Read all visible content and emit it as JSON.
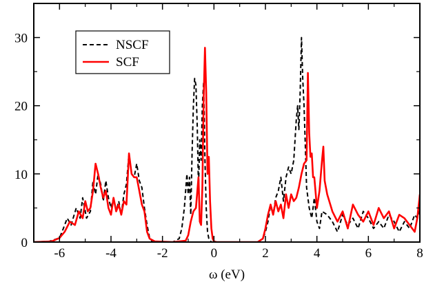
{
  "chart_data": {
    "type": "line",
    "title": "",
    "xlabel": "ω (eV)",
    "ylabel": "",
    "xlim": [
      -7,
      8
    ],
    "ylim": [
      0,
      35
    ],
    "x_ticks": [
      -6,
      -4,
      -2,
      0,
      2,
      4,
      6,
      8
    ],
    "y_ticks": [
      0,
      10,
      20,
      30
    ],
    "grid": false,
    "legend_position": "top-left",
    "series": [
      {
        "name": "NSCF",
        "color": "#000000",
        "style": "dashed",
        "x": [
          -7.0,
          -6.4,
          -6.0,
          -5.85,
          -5.7,
          -5.55,
          -5.35,
          -5.2,
          -5.1,
          -4.95,
          -4.8,
          -4.7,
          -4.6,
          -4.5,
          -4.4,
          -4.3,
          -4.2,
          -4.1,
          -4.0,
          -3.9,
          -3.8,
          -3.7,
          -3.6,
          -3.5,
          -3.4,
          -3.3,
          -3.2,
          -3.1,
          -3.0,
          -2.9,
          -2.8,
          -2.7,
          -2.6,
          -2.5,
          -2.4,
          -2.2,
          -1.6,
          -1.35,
          -1.25,
          -1.15,
          -1.05,
          -1.0,
          -0.95,
          -0.9,
          -0.85,
          -0.8,
          -0.75,
          -0.7,
          -0.65,
          -0.6,
          -0.55,
          -0.5,
          -0.45,
          -0.4,
          -0.35,
          -0.3,
          -0.25,
          -0.2,
          -0.15,
          -0.1,
          0.0,
          0.2,
          1.7,
          1.9,
          2.0,
          2.1,
          2.2,
          2.3,
          2.4,
          2.5,
          2.6,
          2.7,
          2.8,
          2.9,
          3.0,
          3.1,
          3.2,
          3.25,
          3.3,
          3.35,
          3.4,
          3.45,
          3.5,
          3.55,
          3.6,
          3.7,
          3.8,
          3.9,
          4.0,
          4.1,
          4.2,
          4.4,
          4.6,
          4.8,
          5.0,
          5.2,
          5.4,
          5.6,
          5.8,
          6.0,
          6.2,
          6.4,
          6.6,
          6.8,
          7.0,
          7.2,
          7.4,
          7.6,
          7.8,
          7.9,
          8.0
        ],
        "y": [
          0.0,
          0.1,
          0.6,
          2.0,
          3.5,
          2.5,
          5.0,
          3.5,
          6.5,
          3.5,
          4.5,
          9.0,
          7.0,
          10.0,
          8.5,
          6.0,
          9.0,
          6.5,
          5.0,
          6.5,
          4.5,
          6.0,
          4.0,
          7.0,
          8.5,
          13.0,
          10.0,
          9.5,
          11.5,
          9.0,
          8.0,
          5.0,
          2.5,
          0.6,
          0.1,
          0.0,
          0.0,
          0.5,
          2.0,
          5.0,
          10.0,
          7.0,
          9.5,
          4.0,
          13.0,
          20.0,
          24.0,
          23.0,
          17.0,
          8.0,
          15.0,
          12.0,
          20.0,
          23.5,
          12.0,
          5.0,
          1.5,
          0.5,
          0.2,
          0.0,
          0.0,
          0.0,
          0.0,
          0.5,
          1.5,
          3.0,
          5.5,
          4.0,
          6.5,
          7.5,
          9.5,
          6.0,
          9.5,
          11.0,
          10.0,
          12.0,
          18.0,
          20.0,
          16.5,
          22.0,
          30.0,
          24.0,
          20.0,
          14.0,
          8.0,
          5.0,
          3.5,
          6.5,
          3.0,
          2.0,
          4.5,
          4.0,
          3.0,
          1.5,
          4.0,
          2.5,
          3.5,
          2.0,
          4.5,
          3.5,
          2.0,
          3.0,
          2.0,
          4.0,
          3.0,
          1.5,
          3.0,
          2.0,
          4.0,
          3.5,
          5.0
        ]
      },
      {
        "name": "SCF",
        "color": "#ff0000",
        "style": "solid",
        "x": [
          -7.0,
          -6.3,
          -6.0,
          -5.8,
          -5.6,
          -5.4,
          -5.25,
          -5.1,
          -5.0,
          -4.9,
          -4.8,
          -4.7,
          -4.6,
          -4.5,
          -4.4,
          -4.3,
          -4.2,
          -4.1,
          -4.0,
          -3.9,
          -3.8,
          -3.7,
          -3.6,
          -3.5,
          -3.4,
          -3.3,
          -3.2,
          -3.1,
          -3.0,
          -2.9,
          -2.8,
          -2.7,
          -2.6,
          -2.5,
          -2.3,
          -1.6,
          -1.1,
          -1.0,
          -0.9,
          -0.8,
          -0.7,
          -0.6,
          -0.55,
          -0.5,
          -0.45,
          -0.4,
          -0.35,
          -0.3,
          -0.25,
          -0.2,
          -0.15,
          -0.1,
          -0.05,
          0.0,
          0.1,
          0.3,
          1.7,
          1.9,
          2.0,
          2.1,
          2.2,
          2.3,
          2.4,
          2.5,
          2.6,
          2.7,
          2.8,
          2.9,
          3.0,
          3.1,
          3.2,
          3.3,
          3.4,
          3.5,
          3.6,
          3.65,
          3.7,
          3.75,
          3.8,
          3.85,
          3.9,
          4.0,
          4.1,
          4.2,
          4.25,
          4.3,
          4.4,
          4.6,
          4.8,
          5.0,
          5.2,
          5.4,
          5.6,
          5.8,
          6.0,
          6.2,
          6.4,
          6.6,
          6.8,
          7.0,
          7.2,
          7.4,
          7.6,
          7.8,
          7.9,
          8.0
        ],
        "y": [
          0.0,
          0.1,
          0.6,
          1.5,
          3.0,
          2.5,
          4.5,
          3.5,
          6.0,
          4.5,
          5.0,
          7.5,
          11.5,
          10.0,
          8.0,
          6.5,
          7.5,
          5.0,
          4.0,
          6.5,
          4.5,
          5.5,
          4.0,
          6.0,
          5.5,
          13.0,
          10.0,
          9.5,
          9.5,
          7.5,
          5.5,
          4.5,
          1.5,
          0.5,
          0.1,
          0.0,
          0.2,
          1.0,
          3.0,
          4.5,
          5.0,
          9.5,
          3.0,
          2.5,
          8.0,
          21.0,
          28.5,
          22.0,
          10.0,
          12.5,
          6.0,
          2.0,
          0.5,
          0.1,
          0.0,
          0.0,
          0.0,
          0.5,
          2.0,
          4.0,
          5.5,
          4.0,
          6.0,
          4.5,
          5.5,
          3.5,
          7.0,
          5.0,
          7.0,
          6.0,
          6.5,
          8.0,
          10.0,
          11.5,
          12.0,
          24.8,
          16.0,
          12.5,
          13.0,
          9.5,
          9.5,
          5.0,
          7.5,
          12.0,
          14.0,
          9.0,
          7.0,
          4.5,
          3.0,
          4.5,
          2.0,
          5.5,
          4.0,
          3.0,
          4.5,
          2.5,
          5.0,
          3.5,
          4.5,
          2.0,
          4.0,
          3.5,
          2.5,
          1.5,
          3.5,
          7.0
        ]
      }
    ]
  }
}
